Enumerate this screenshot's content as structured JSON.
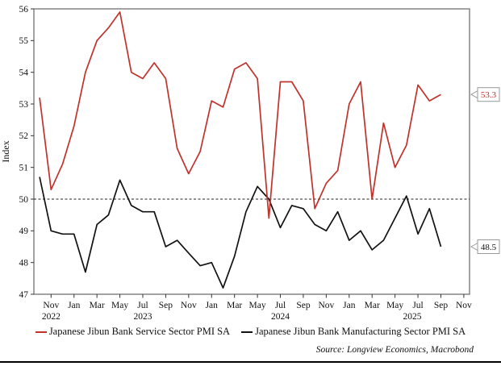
{
  "chart": {
    "y_axis_label": "Index",
    "source_note": "Source: Longview Economics, Macrobond"
  },
  "legend": {
    "items": [
      {
        "label": "Japanese Jibun Bank Service Sector PMI SA"
      },
      {
        "label": "Japanese Jibun Bank Manufacturing Sector PMI SA"
      }
    ]
  },
  "chart_data": {
    "type": "line",
    "title": "",
    "xlabel": "",
    "ylabel": "Index",
    "ylim": [
      47,
      56
    ],
    "y_tick_step": 1,
    "grid": false,
    "legend_position": "bottom",
    "reference_line": {
      "value": 50,
      "style": "dashed",
      "color": "#222222"
    },
    "x_axis_total_months": 38,
    "x": [
      "Oct 2022",
      "Nov 2022",
      "Dec 2022",
      "Jan 2023",
      "Feb 2023",
      "Mar 2023",
      "Apr 2023",
      "May 2023",
      "Jun 2023",
      "Jul 2023",
      "Aug 2023",
      "Sep 2023",
      "Oct 2023",
      "Nov 2023",
      "Dec 2023",
      "Jan 2024",
      "Feb 2024",
      "Mar 2024",
      "Apr 2024",
      "May 2024",
      "Jun 2024",
      "Jul 2024",
      "Aug 2024",
      "Sep 2024",
      "Oct 2024",
      "Nov 2024",
      "Dec 2024",
      "Jan 2025",
      "Feb 2025",
      "Mar 2025",
      "Apr 2025",
      "May 2025",
      "Jun 2025",
      "Jul 2025",
      "Aug 2025",
      "Sep 2025"
    ],
    "series": [
      {
        "name": "Japanese Jibun Bank Service Sector PMI SA",
        "color": "#c0322c",
        "end_label": "53.3",
        "values": [
          53.2,
          50.3,
          51.1,
          52.3,
          54.0,
          55.0,
          55.4,
          55.9,
          54.0,
          53.8,
          54.3,
          53.8,
          51.6,
          50.8,
          51.5,
          53.1,
          52.9,
          54.1,
          54.3,
          53.8,
          49.4,
          53.7,
          53.7,
          53.1,
          49.7,
          50.5,
          50.9,
          53.0,
          53.7,
          50.0,
          52.4,
          51.0,
          51.7,
          53.6,
          53.1,
          53.3
        ]
      },
      {
        "name": "Japanese Jibun Bank Manufacturing Sector PMI SA",
        "color": "#121212",
        "end_label": "48.5",
        "values": [
          50.7,
          49.0,
          48.9,
          48.9,
          47.7,
          49.2,
          49.5,
          50.6,
          49.8,
          49.6,
          49.6,
          48.5,
          48.7,
          48.3,
          47.9,
          48.0,
          47.2,
          48.2,
          49.6,
          50.4,
          50.0,
          49.1,
          49.8,
          49.7,
          49.2,
          49.0,
          49.6,
          48.7,
          49.0,
          48.4,
          48.7,
          49.4,
          50.1,
          48.9,
          49.7,
          48.5
        ]
      }
    ],
    "x_ticks": [
      {
        "i": 1,
        "label": "Nov"
      },
      {
        "i": 3,
        "label": "Jan"
      },
      {
        "i": 5,
        "label": "Mar"
      },
      {
        "i": 7,
        "label": "May"
      },
      {
        "i": 9,
        "label": "Jul"
      },
      {
        "i": 11,
        "label": "Sep"
      },
      {
        "i": 13,
        "label": "Nov"
      },
      {
        "i": 15,
        "label": "Jan"
      },
      {
        "i": 17,
        "label": "Mar"
      },
      {
        "i": 19,
        "label": "May"
      },
      {
        "i": 21,
        "label": "Jul"
      },
      {
        "i": 23,
        "label": "Sep"
      },
      {
        "i": 25,
        "label": "Nov"
      },
      {
        "i": 27,
        "label": "Jan"
      },
      {
        "i": 29,
        "label": "Mar"
      },
      {
        "i": 31,
        "label": "May"
      },
      {
        "i": 33,
        "label": "Jul"
      },
      {
        "i": 35,
        "label": "Sep"
      },
      {
        "i": 37,
        "label": "Nov"
      }
    ],
    "year_labels": [
      {
        "i": 1,
        "text": "2022"
      },
      {
        "i": 9,
        "text": "2023"
      },
      {
        "i": 21,
        "text": "2024"
      },
      {
        "i": 32.5,
        "text": "2025"
      }
    ]
  }
}
